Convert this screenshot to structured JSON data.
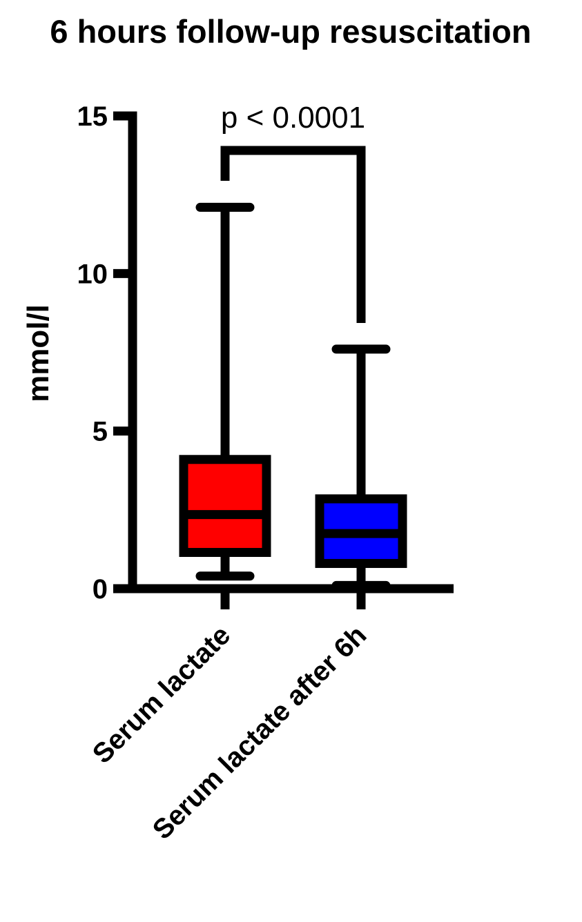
{
  "chart_data": {
    "type": "boxplot",
    "title": "6 hours follow-up resuscitation",
    "xlabel": "",
    "ylabel": "mmol/l",
    "ylim": [
      0,
      15
    ],
    "yticks": [
      0,
      5,
      10,
      15
    ],
    "grid": false,
    "categories": [
      "Serum lactate",
      "Serum lactate after 6h"
    ],
    "boxes": [
      {
        "category": "Serum lactate",
        "min": 0.4,
        "q1": 1.15,
        "median": 2.35,
        "q3": 4.1,
        "max": 12.1,
        "color": "#ff0000"
      },
      {
        "category": "Serum lactate after 6h",
        "min": 0.1,
        "q1": 0.8,
        "median": 1.75,
        "q3": 2.85,
        "max": 7.6,
        "color": "#0000ff"
      }
    ],
    "annotations": [
      {
        "text": "p < 0.0001",
        "between": [
          "Serum lactate",
          "Serum lactate after 6h"
        ]
      }
    ]
  }
}
